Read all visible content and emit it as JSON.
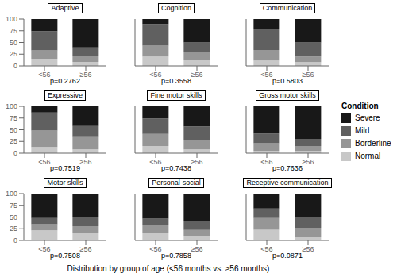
{
  "chart_data": [
    {
      "type": "bar",
      "stacked": true,
      "title": "Adaptive",
      "annotation": "p=0.2762",
      "categories": [
        "<56",
        "≥56"
      ],
      "series": [
        {
          "name": "Normal",
          "color": "#c8c8c8",
          "values": [
            15.29411765,
            8.333333333
          ]
        },
        {
          "name": "Borderline",
          "color": "#969696",
          "values": [
            17.64705882,
            12.5
          ]
        },
        {
          "name": "Mild",
          "color": "#606060",
          "values": [
            41.17647059,
            18.75
          ]
        },
        {
          "name": "Severe",
          "color": "#181818",
          "values": [
            25.88235294,
            60.41666667
          ]
        }
      ],
      "ylim": [
        0,
        100
      ],
      "yticks": [
        0,
        25,
        50,
        75,
        100
      ]
    },
    {
      "type": "bar",
      "stacked": true,
      "title": "Cognition",
      "annotation": "p=0.3558",
      "categories": [
        "<56",
        "≥56"
      ],
      "series": [
        {
          "name": "Normal",
          "color": "#c8c8c8",
          "values": [
            19.73684211,
            12
          ]
        },
        {
          "name": "Borderline",
          "color": "#969696",
          "values": [
            23.68421053,
            18
          ]
        },
        {
          "name": "Mild",
          "color": "#606060",
          "values": [
            46.05263158,
            20
          ]
        },
        {
          "name": "Severe",
          "color": "#181818",
          "values": [
            10.52631579,
            50
          ]
        }
      ],
      "ylim": [
        0,
        100
      ],
      "yticks": [
        0,
        25,
        50,
        75,
        100
      ],
      "tick_labels": "x"
    },
    {
      "type": "bar",
      "stacked": true,
      "title": "Communication",
      "annotation": "p=0.5803",
      "categories": [
        "<56",
        "≥56"
      ],
      "series": [
        {
          "name": "Normal",
          "color": "#c8c8c8",
          "values": [
            11.36363636,
            8
          ]
        },
        {
          "name": "Borderline",
          "color": "#969696",
          "values": [
            22.72727273,
            12
          ]
        },
        {
          "name": "Mild",
          "color": "#606060",
          "values": [
            45.45454545,
            30
          ]
        },
        {
          "name": "Severe",
          "color": "#181818",
          "values": [
            20.45454545,
            50
          ]
        }
      ],
      "ylim": [
        0,
        100
      ],
      "yticks": [
        0,
        25,
        50,
        75,
        100
      ],
      "tick_labels": "x"
    },
    {
      "type": "bar",
      "stacked": true,
      "title": "Expressive",
      "annotation": "p=0.7519",
      "categories": [
        "<56",
        "≥56"
      ],
      "series": [
        {
          "name": "Normal",
          "color": "#c8c8c8",
          "values": [
            13.18681319,
            8
          ]
        },
        {
          "name": "Borderline",
          "color": "#969696",
          "values": [
            35.16483516,
            28
          ]
        },
        {
          "name": "Mild",
          "color": "#606060",
          "values": [
            38.46153846,
            22
          ]
        },
        {
          "name": "Severe",
          "color": "#181818",
          "values": [
            13.18681319,
            42
          ]
        }
      ],
      "ylim": [
        0,
        100
      ],
      "yticks": [
        0,
        25,
        50,
        75,
        100
      ]
    },
    {
      "type": "bar",
      "stacked": true,
      "title": "Fine motor skills",
      "annotation": "p=0.7438",
      "categories": [
        "<56",
        "≥56"
      ],
      "series": [
        {
          "name": "Normal",
          "color": "#c8c8c8",
          "values": [
            15.46391753,
            8.163265306
          ]
        },
        {
          "name": "Borderline",
          "color": "#969696",
          "values": [
            25.77319588,
            20.40816327
          ]
        },
        {
          "name": "Mild",
          "color": "#606060",
          "values": [
            32.98969072,
            28.57142857
          ]
        },
        {
          "name": "Severe",
          "color": "#181818",
          "values": [
            25.77319588,
            42.85714286
          ]
        }
      ],
      "ylim": [
        0,
        100
      ],
      "yticks": [
        0,
        25,
        50,
        75,
        100
      ],
      "tick_labels": "x"
    },
    {
      "type": "bar",
      "stacked": true,
      "title": "Gross motor skills",
      "annotation": "p=0.7636",
      "categories": [
        "<56",
        "≥56"
      ],
      "series": [
        {
          "name": "Normal",
          "color": "#c8c8c8",
          "values": [
            5.263157895,
            5.102040816
          ]
        },
        {
          "name": "Borderline",
          "color": "#969696",
          "values": [
            15.78947368,
            10.20408163
          ]
        },
        {
          "name": "Mild",
          "color": "#606060",
          "values": [
            21.05263158,
            15.30612245
          ]
        },
        {
          "name": "Severe",
          "color": "#181818",
          "values": [
            57.89473684,
            69.3877551
          ]
        }
      ],
      "ylim": [
        0,
        100
      ],
      "yticks": [
        0,
        25,
        50,
        75,
        100
      ],
      "tick_labels": "x"
    },
    {
      "type": "bar",
      "stacked": true,
      "title": "Motor skills",
      "annotation": "p=0.7508",
      "categories": [
        "<56",
        "≥56"
      ],
      "series": [
        {
          "name": "Normal",
          "color": "#c8c8c8",
          "values": [
            21.73913043,
            15.30612245
          ]
        },
        {
          "name": "Borderline",
          "color": "#969696",
          "values": [
            13.04347826,
            15.30612245
          ]
        },
        {
          "name": "Mild",
          "color": "#606060",
          "values": [
            13.04347826,
            18.36734694
          ]
        },
        {
          "name": "Severe",
          "color": "#181818",
          "values": [
            52.17391304,
            51.02040816
          ]
        }
      ],
      "ylim": [
        0,
        100
      ],
      "yticks": [
        0,
        25,
        50,
        75,
        100
      ]
    },
    {
      "type": "bar",
      "stacked": true,
      "title": "Personal-social",
      "annotation": "p=0.7858",
      "categories": [
        "<56",
        "≥56"
      ],
      "series": [
        {
          "name": "Normal",
          "color": "#c8c8c8",
          "values": [
            16.66666667,
            10.20408163
          ]
        },
        {
          "name": "Borderline",
          "color": "#969696",
          "values": [
            16.66666667,
            12.24489796
          ]
        },
        {
          "name": "Mild",
          "color": "#606060",
          "values": [
            13.33333333,
            18.36734694
          ]
        },
        {
          "name": "Severe",
          "color": "#181818",
          "values": [
            53.33333333,
            59.18367347
          ]
        }
      ],
      "ylim": [
        0,
        100
      ],
      "yticks": [
        0,
        25,
        50,
        75,
        100
      ],
      "tick_labels": "x"
    },
    {
      "type": "bar",
      "stacked": true,
      "title": "Receptive communication",
      "annotation": "p=0.0871",
      "categories": [
        "<56",
        "≥56"
      ],
      "series": [
        {
          "name": "Normal",
          "color": "#c8c8c8",
          "values": [
            22.72727273,
            8.333333333
          ]
        },
        {
          "name": "Borderline",
          "color": "#969696",
          "values": [
            25,
            18.75
          ]
        },
        {
          "name": "Mild",
          "color": "#606060",
          "values": [
            20.45454545,
            22.91666667
          ]
        },
        {
          "name": "Severe",
          "color": "#181818",
          "values": [
            31.81818182,
            50
          ]
        }
      ],
      "ylim": [
        0,
        100
      ],
      "yticks": [
        0,
        25,
        50,
        75,
        100
      ],
      "tick_labels": "x"
    }
  ],
  "xlabel": "Distribution by group of age (<56 months vs. ≥56 months)",
  "legend_title": "Condition",
  "legend": "right"
}
